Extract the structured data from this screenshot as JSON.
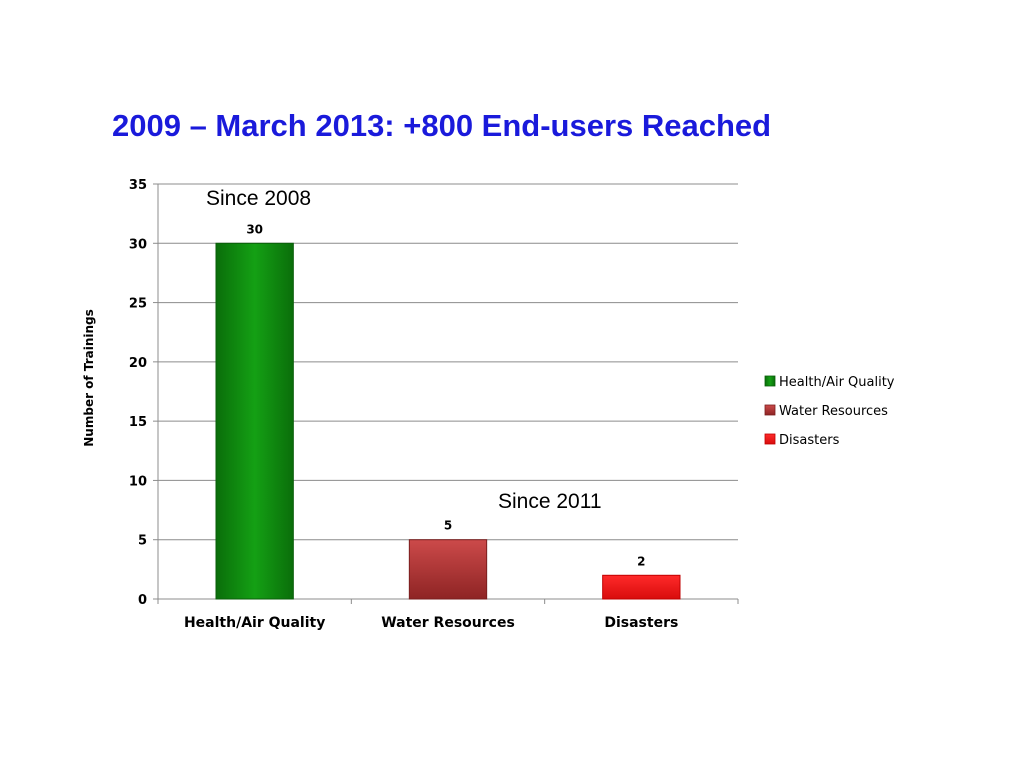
{
  "slide": {
    "title": "2009 – March 2013: +800 End-users Reached",
    "title_color": "#1a1adb"
  },
  "chart_data": {
    "type": "bar",
    "categories": [
      "Health/Air Quality",
      "Water Resources",
      "Disasters"
    ],
    "values": [
      30,
      5,
      2
    ],
    "data_labels": [
      "30",
      "5",
      "2"
    ],
    "colors": [
      "#0f8a0f",
      "#b83232",
      "#f01414"
    ],
    "ylabel": "Number of Trainings",
    "xlabel": "",
    "ylim": [
      0,
      35
    ],
    "yticks": [
      0,
      5,
      10,
      15,
      20,
      25,
      30,
      35
    ],
    "grid": true,
    "legend": {
      "placement": "right",
      "entries": [
        "Health/Air Quality",
        "Water Resources",
        "Disasters"
      ]
    },
    "annotations": [
      "Since 2008",
      "Since 2011"
    ]
  }
}
